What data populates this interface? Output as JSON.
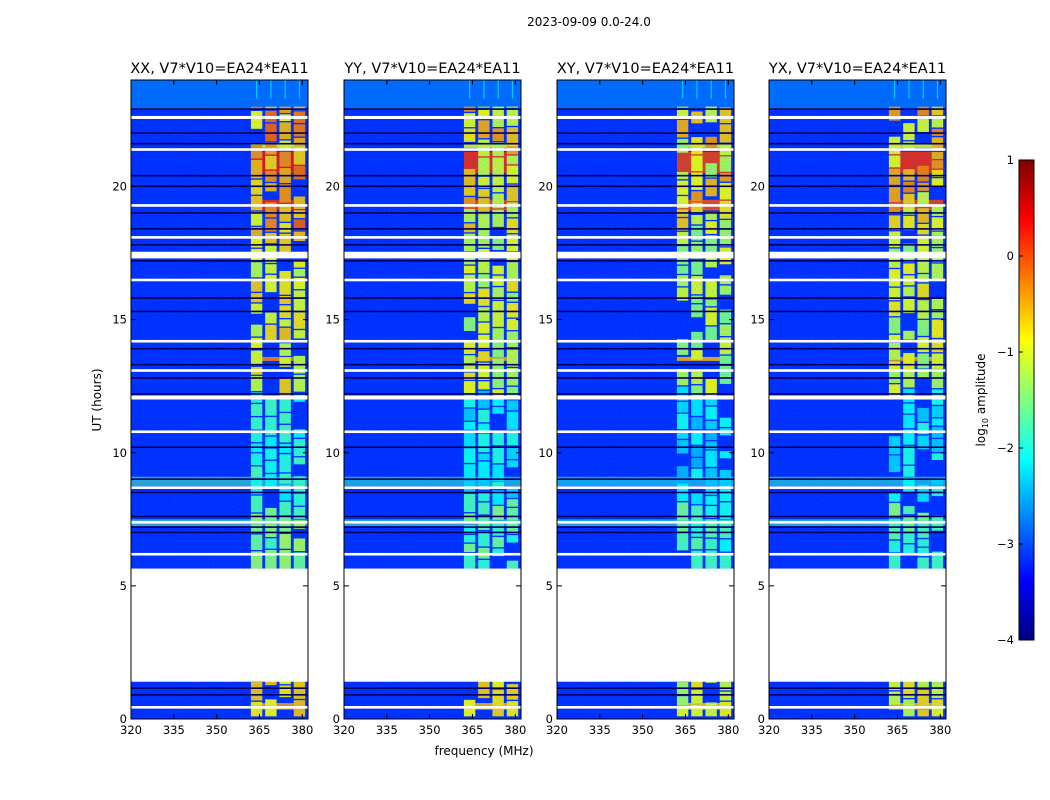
{
  "chart_data": {
    "type": "heatmap",
    "suptitle": "2023-09-09 0.0-24.0",
    "xlabel": "frequency (MHz)",
    "ylabel": "UT (hours)",
    "xlim": [
      320,
      382
    ],
    "ylim": [
      0,
      24
    ],
    "xticks": [
      320,
      335,
      350,
      365,
      380
    ],
    "yticks": [
      0,
      5,
      10,
      15,
      20
    ],
    "colorbar": {
      "label_prefix": "log",
      "label_sub": "10",
      "label_suffix": " amplitude",
      "vmin": -4,
      "vmax": 1,
      "ticks": [
        -4,
        -3,
        -2,
        -1,
        0,
        1
      ],
      "tick_labels": [
        "−4",
        "−3",
        "−2",
        "−1",
        "0",
        "1"
      ],
      "colormap": "jet",
      "colormap_stops": [
        "#00007f",
        "#0000ff",
        "#007fff",
        "#00ffff",
        "#7fff7f",
        "#ffff00",
        "#ff7f00",
        "#ff0000",
        "#7f0000"
      ]
    },
    "panels": [
      {
        "title": "XX, V7*V10=EA24*EA11",
        "pol": "XX",
        "intensity": 1.25
      },
      {
        "title": "YY, V7*V10=EA24*EA11",
        "pol": "YY",
        "intensity": 1.0
      },
      {
        "title": "XY, V7*V10=EA24*EA11",
        "pol": "XY",
        "intensity": 0.85
      },
      {
        "title": "YX, V7*V10=EA24*EA11",
        "pol": "YX",
        "intensity": 1.0
      }
    ],
    "background_log_amplitude": -3.2,
    "rfi_band_mhz": [
      362,
      381
    ],
    "rfi_sub_bands_mhz": [
      [
        362,
        366
      ],
      [
        367,
        371
      ],
      [
        372,
        376
      ],
      [
        377,
        381
      ]
    ],
    "gap_intervals_ut": [
      [
        1.4,
        5.65
      ]
    ],
    "flag_lines_ut": [
      0.45,
      0.9,
      1.15,
      6.2,
      7.0,
      7.2,
      7.4,
      7.6,
      8.5,
      8.7,
      9.0,
      10.2,
      10.8,
      12.2,
      12.8,
      13.1,
      13.3,
      13.9,
      14.2,
      15.3,
      15.8,
      16.5,
      17.2,
      17.8,
      18.1,
      18.4,
      19.0,
      19.3,
      20.0,
      20.4,
      21.4,
      21.6,
      22.0,
      22.6,
      22.9
    ],
    "bright_rows_ut": [
      [
        7.25,
        7.5,
        -1.8
      ],
      [
        8.75,
        9.1,
        -1.9
      ],
      [
        13.45,
        13.6,
        -0.4
      ],
      [
        19.1,
        19.5,
        0.1
      ],
      [
        20.5,
        21.3,
        0.2
      ],
      [
        21.45,
        21.6,
        -1.0
      ],
      [
        0.35,
        0.6,
        -0.5
      ]
    ]
  }
}
